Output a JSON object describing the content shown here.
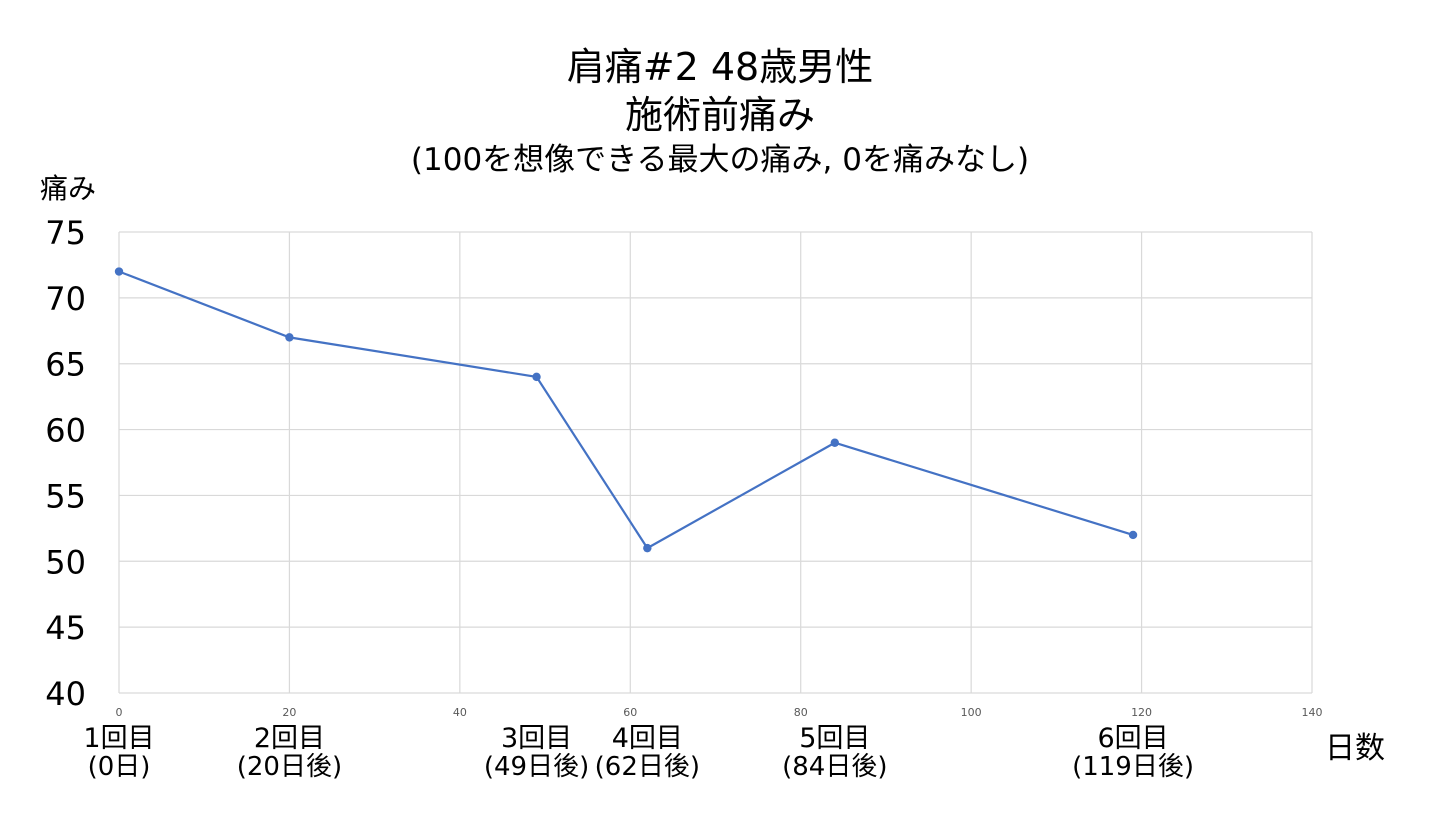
{
  "chart_data": {
    "type": "scatter",
    "title_line1": "肩痛#2 48歳男性",
    "title_line2": "施術前痛み",
    "subtitle": "(100を想像できる最大の痛み, 0を痛みなし)",
    "ylabel": "痛み",
    "xlabel": "日数",
    "xlim": [
      0,
      140
    ],
    "ylim": [
      40,
      75
    ],
    "x_ticks": [
      0,
      20,
      40,
      60,
      80,
      100,
      120,
      140
    ],
    "y_ticks": [
      40,
      45,
      50,
      55,
      60,
      65,
      70,
      75
    ],
    "grid": true,
    "series": [
      {
        "color": "#4472C4",
        "points": [
          {
            "x": 0,
            "y": 72
          },
          {
            "x": 20,
            "y": 67
          },
          {
            "x": 49,
            "y": 64
          },
          {
            "x": 62,
            "y": 51
          },
          {
            "x": 84,
            "y": 59
          },
          {
            "x": 119,
            "y": 52
          }
        ]
      }
    ],
    "session_labels": [
      {
        "x": 0,
        "line1": "1回目",
        "line2": "(0日)"
      },
      {
        "x": 20,
        "line1": "2回目",
        "line2": "(20日後)"
      },
      {
        "x": 49,
        "line1": "3回目",
        "line2": "(49日後)"
      },
      {
        "x": 62,
        "line1": "4回目",
        "line2": "(62日後)"
      },
      {
        "x": 84,
        "line1": "5回目",
        "line2": "(84日後)"
      },
      {
        "x": 119,
        "line1": "6回目",
        "line2": "(119日後)"
      }
    ]
  }
}
